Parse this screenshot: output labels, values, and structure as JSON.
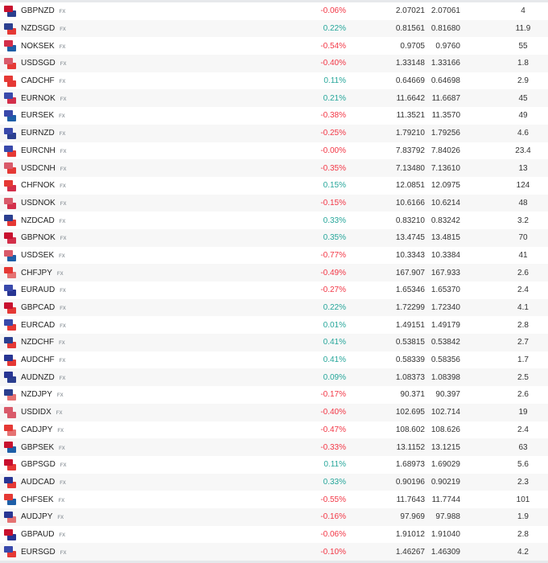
{
  "rows": [
    {
      "symbol": "GBPNZD",
      "tag": "FX",
      "change": "-0.06%",
      "bid": "2.07021",
      "ask": "2.07061",
      "spread": "4"
    },
    {
      "symbol": "NZDSGD",
      "tag": "FX",
      "change": "0.22%",
      "bid": "0.81561",
      "ask": "0.81680",
      "spread": "11.9"
    },
    {
      "symbol": "NOKSEK",
      "tag": "FX",
      "change": "-0.54%",
      "bid": "0.9705",
      "ask": "0.9760",
      "spread": "55"
    },
    {
      "symbol": "USDSGD",
      "tag": "FX",
      "change": "-0.40%",
      "bid": "1.33148",
      "ask": "1.33166",
      "spread": "1.8"
    },
    {
      "symbol": "CADCHF",
      "tag": "FX",
      "change": "0.11%",
      "bid": "0.64669",
      "ask": "0.64698",
      "spread": "2.9"
    },
    {
      "symbol": "EURNOK",
      "tag": "FX",
      "change": "0.21%",
      "bid": "11.6642",
      "ask": "11.6687",
      "spread": "45"
    },
    {
      "symbol": "EURSEK",
      "tag": "FX",
      "change": "-0.38%",
      "bid": "11.3521",
      "ask": "11.3570",
      "spread": "49"
    },
    {
      "symbol": "EURNZD",
      "tag": "FX",
      "change": "-0.25%",
      "bid": "1.79210",
      "ask": "1.79256",
      "spread": "4.6"
    },
    {
      "symbol": "EURCNH",
      "tag": "FX",
      "change": "-0.00%",
      "bid": "7.83792",
      "ask": "7.84026",
      "spread": "23.4"
    },
    {
      "symbol": "USDCNH",
      "tag": "FX",
      "change": "-0.35%",
      "bid": "7.13480",
      "ask": "7.13610",
      "spread": "13"
    },
    {
      "symbol": "CHFNOK",
      "tag": "FX",
      "change": "0.15%",
      "bid": "12.0851",
      "ask": "12.0975",
      "spread": "124"
    },
    {
      "symbol": "USDNOK",
      "tag": "FX",
      "change": "-0.15%",
      "bid": "10.6166",
      "ask": "10.6214",
      "spread": "48"
    },
    {
      "symbol": "NZDCAD",
      "tag": "FX",
      "change": "0.33%",
      "bid": "0.83210",
      "ask": "0.83242",
      "spread": "3.2"
    },
    {
      "symbol": "GBPNOK",
      "tag": "FX",
      "change": "0.35%",
      "bid": "13.4745",
      "ask": "13.4815",
      "spread": "70"
    },
    {
      "symbol": "USDSEK",
      "tag": "FX",
      "change": "-0.77%",
      "bid": "10.3343",
      "ask": "10.3384",
      "spread": "41"
    },
    {
      "symbol": "CHFJPY",
      "tag": "FX",
      "change": "-0.49%",
      "bid": "167.907",
      "ask": "167.933",
      "spread": "2.6"
    },
    {
      "symbol": "EURAUD",
      "tag": "FX",
      "change": "-0.27%",
      "bid": "1.65346",
      "ask": "1.65370",
      "spread": "2.4"
    },
    {
      "symbol": "GBPCAD",
      "tag": "FX",
      "change": "0.22%",
      "bid": "1.72299",
      "ask": "1.72340",
      "spread": "4.1"
    },
    {
      "symbol": "EURCAD",
      "tag": "FX",
      "change": "0.01%",
      "bid": "1.49151",
      "ask": "1.49179",
      "spread": "2.8"
    },
    {
      "symbol": "NZDCHF",
      "tag": "FX",
      "change": "0.41%",
      "bid": "0.53815",
      "ask": "0.53842",
      "spread": "2.7"
    },
    {
      "symbol": "AUDCHF",
      "tag": "FX",
      "change": "0.41%",
      "bid": "0.58339",
      "ask": "0.58356",
      "spread": "1.7"
    },
    {
      "symbol": "AUDNZD",
      "tag": "FX",
      "change": "0.09%",
      "bid": "1.08373",
      "ask": "1.08398",
      "spread": "2.5"
    },
    {
      "symbol": "NZDJPY",
      "tag": "FX",
      "change": "-0.17%",
      "bid": "90.371",
      "ask": "90.397",
      "spread": "2.6"
    },
    {
      "symbol": "USDIDX",
      "tag": "FX",
      "change": "-0.40%",
      "bid": "102.695",
      "ask": "102.714",
      "spread": "19"
    },
    {
      "symbol": "CADJPY",
      "tag": "FX",
      "change": "-0.47%",
      "bid": "108.602",
      "ask": "108.626",
      "spread": "2.4"
    },
    {
      "symbol": "GBPSEK",
      "tag": "FX",
      "change": "-0.33%",
      "bid": "13.1152",
      "ask": "13.1215",
      "spread": "63"
    },
    {
      "symbol": "GBPSGD",
      "tag": "FX",
      "change": "0.11%",
      "bid": "1.68973",
      "ask": "1.69029",
      "spread": "5.6"
    },
    {
      "symbol": "AUDCAD",
      "tag": "FX",
      "change": "0.33%",
      "bid": "0.90196",
      "ask": "0.90219",
      "spread": "2.3"
    },
    {
      "symbol": "CHFSEK",
      "tag": "FX",
      "change": "-0.55%",
      "bid": "11.7643",
      "ask": "11.7744",
      "spread": "101"
    },
    {
      "symbol": "AUDJPY",
      "tag": "FX",
      "change": "-0.16%",
      "bid": "97.969",
      "ask": "97.988",
      "spread": "1.9"
    },
    {
      "symbol": "GBPAUD",
      "tag": "FX",
      "change": "-0.06%",
      "bid": "1.91012",
      "ask": "1.91040",
      "spread": "2.8"
    },
    {
      "symbol": "EURSGD",
      "tag": "FX",
      "change": "-0.10%",
      "bid": "1.46267",
      "ask": "1.46309",
      "spread": "4.2"
    }
  ],
  "colors": {
    "positive": "#26a69a",
    "negative": "#f23645"
  }
}
